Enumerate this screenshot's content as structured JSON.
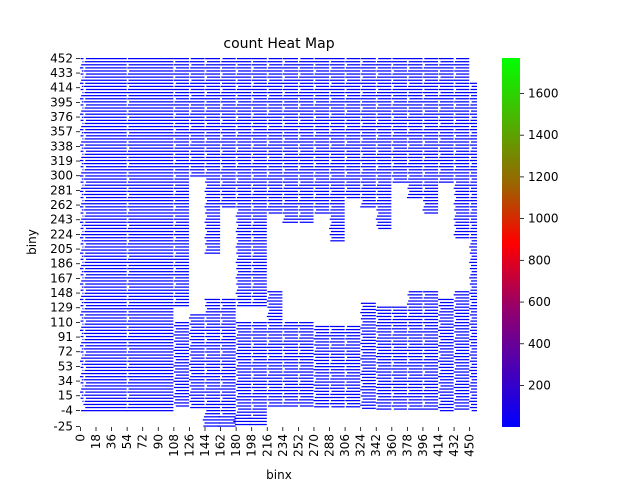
{
  "chart_data": {
    "type": "heatmap",
    "title": "count Heat Map",
    "xlabel": "binx",
    "ylabel": "biny",
    "x_ticks": [
      "0",
      "18",
      "36",
      "54",
      "72",
      "90",
      "108",
      "126",
      "144",
      "162",
      "180",
      "198",
      "216",
      "234",
      "252",
      "270",
      "288",
      "306",
      "324",
      "342",
      "360",
      "378",
      "396",
      "414",
      "432",
      "450"
    ],
    "y_ticks": [
      "452",
      "433",
      "414",
      "395",
      "376",
      "357",
      "338",
      "319",
      "300",
      "281",
      "262",
      "243",
      "224",
      "205",
      "186",
      "167",
      "148",
      "129",
      "110",
      "91",
      "72",
      "53",
      "34",
      "15",
      "-4",
      "-25"
    ],
    "colorbar": {
      "ticks": [
        "200",
        "400",
        "600",
        "800",
        "1000",
        "1200",
        "1400",
        "1600"
      ],
      "tick_values": [
        200,
        400,
        600,
        800,
        1000,
        1200,
        1400,
        1600
      ],
      "range": [
        1,
        1770
      ],
      "colors": [
        "#0000ff",
        "#ff0000",
        "#00ff00"
      ]
    },
    "typical_cell_value": 1,
    "cell_color": "#0000ff",
    "columns": [
      {
        "x0": 0,
        "x1": 4,
        "segs": [
          [
            8,
            452
          ]
        ]
      },
      {
        "x0": 4,
        "x1": 54,
        "segs": [
          [
            -4,
            452
          ]
        ]
      },
      {
        "x0": 54,
        "x1": 108,
        "segs": [
          [
            -4,
            452
          ]
        ]
      },
      {
        "x0": 108,
        "x1": 126,
        "segs": [
          [
            0,
            110
          ],
          [
            129,
            452
          ]
        ]
      },
      {
        "x0": 126,
        "x1": 144,
        "segs": [
          [
            0,
            120
          ],
          [
            300,
            452
          ]
        ]
      },
      {
        "x0": 144,
        "x1": 162,
        "segs": [
          [
            -25,
            140
          ],
          [
            200,
            452
          ]
        ]
      },
      {
        "x0": 162,
        "x1": 180,
        "segs": [
          [
            -25,
            140
          ],
          [
            260,
            452
          ]
        ]
      },
      {
        "x0": 180,
        "x1": 198,
        "segs": [
          [
            -25,
            110
          ],
          [
            130,
            452
          ]
        ]
      },
      {
        "x0": 198,
        "x1": 216,
        "segs": [
          [
            -25,
            110
          ],
          [
            130,
            452
          ]
        ]
      },
      {
        "x0": 216,
        "x1": 234,
        "segs": [
          [
            0,
            150
          ],
          [
            250,
            452
          ]
        ]
      },
      {
        "x0": 234,
        "x1": 252,
        "segs": [
          [
            0,
            110
          ],
          [
            240,
            452
          ]
        ]
      },
      {
        "x0": 252,
        "x1": 270,
        "segs": [
          [
            0,
            110
          ],
          [
            240,
            452
          ]
        ]
      },
      {
        "x0": 270,
        "x1": 288,
        "segs": [
          [
            0,
            105
          ],
          [
            250,
            452
          ]
        ]
      },
      {
        "x0": 288,
        "x1": 306,
        "segs": [
          [
            0,
            105
          ],
          [
            215,
            452
          ]
        ]
      },
      {
        "x0": 306,
        "x1": 324,
        "segs": [
          [
            0,
            105
          ],
          [
            270,
            452
          ]
        ]
      },
      {
        "x0": 324,
        "x1": 342,
        "segs": [
          [
            -4,
            135
          ],
          [
            260,
            452
          ]
        ]
      },
      {
        "x0": 342,
        "x1": 360,
        "segs": [
          [
            -4,
            130
          ],
          [
            230,
            452
          ]
        ]
      },
      {
        "x0": 360,
        "x1": 378,
        "segs": [
          [
            -4,
            130
          ],
          [
            290,
            452
          ]
        ]
      },
      {
        "x0": 378,
        "x1": 396,
        "segs": [
          [
            -4,
            150
          ],
          [
            270,
            452
          ]
        ]
      },
      {
        "x0": 396,
        "x1": 414,
        "segs": [
          [
            -4,
            150
          ],
          [
            250,
            452
          ]
        ]
      },
      {
        "x0": 414,
        "x1": 432,
        "segs": [
          [
            -4,
            140
          ],
          [
            290,
            452
          ]
        ]
      },
      {
        "x0": 432,
        "x1": 450,
        "segs": [
          [
            -4,
            150
          ],
          [
            220,
            452
          ]
        ]
      },
      {
        "x0": 450,
        "x1": 459,
        "segs": [
          [
            -4,
            420
          ]
        ]
      }
    ]
  }
}
